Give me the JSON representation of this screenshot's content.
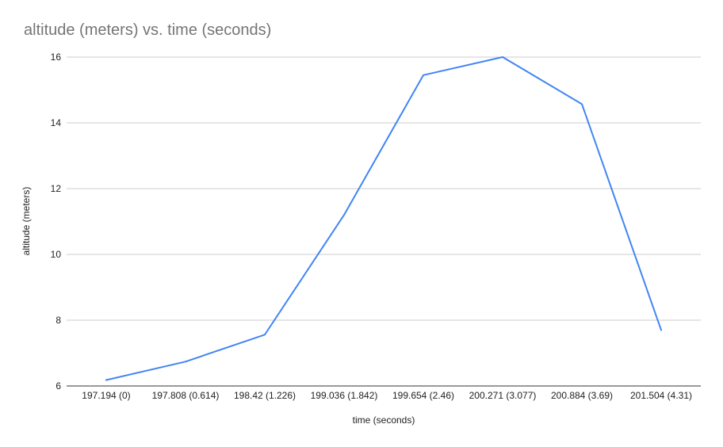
{
  "chart_data": {
    "type": "line",
    "title": "altitude (meters) vs. time (seconds)",
    "xlabel": "time (seconds)",
    "ylabel": "altitude (meters)",
    "categories": [
      "197.194 (0)",
      "197.808 (0.614)",
      "198.42 (1.226)",
      "199.036 (1.842)",
      "199.654 (2.46)",
      "200.271 (3.077)",
      "200.884 (3.69)",
      "201.504 (4.31)"
    ],
    "series": [
      {
        "color": "#4285f4",
        "values": [
          6.18,
          6.74,
          7.56,
          11.2,
          15.45,
          16.0,
          14.57,
          7.7
        ]
      }
    ],
    "ylim": [
      6,
      16
    ],
    "yticks": [
      "6",
      "8",
      "10",
      "12",
      "14",
      "16"
    ],
    "grid": true,
    "legend": "none"
  }
}
